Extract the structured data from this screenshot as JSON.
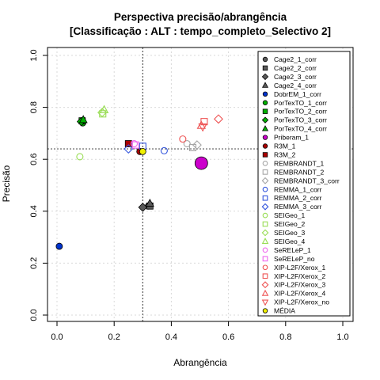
{
  "chart_data": {
    "type": "scatter",
    "title": "Perspectiva precisão/abrangência",
    "subtitle": "[Classificação : ALT : tempo_completo_Selectivo 2]",
    "xlabel": "Abrangência",
    "ylabel": "Precisão",
    "xlim": [
      0,
      1
    ],
    "ylim": [
      0,
      1
    ],
    "xticks": [
      "0.0",
      "0.2",
      "0.4",
      "0.6",
      "0.8",
      "1.0"
    ],
    "yticks": [
      "0.0",
      "0.2",
      "0.4",
      "0.6",
      "0.8",
      "1.0"
    ],
    "grid": true,
    "legend_position": "right",
    "reference_lines": {
      "x": 0.3,
      "y": 0.64
    },
    "series": [
      {
        "name": "Cage2_1_corr",
        "shape": "circle",
        "color": "#595959",
        "filled": true,
        "points": [
          [
            0.32,
            0.42
          ]
        ]
      },
      {
        "name": "Cage2_2_corr",
        "shape": "square",
        "color": "#595959",
        "filled": true,
        "points": [
          [
            0.325,
            0.42
          ]
        ]
      },
      {
        "name": "Cage2_3_corr",
        "shape": "diamond",
        "color": "#595959",
        "filled": true,
        "points": [
          [
            0.3,
            0.415
          ]
        ]
      },
      {
        "name": "Cage2_4_corr",
        "shape": "triangle",
        "color": "#595959",
        "filled": true,
        "points": [
          [
            0.325,
            0.43
          ]
        ]
      },
      {
        "name": "DobrEM_1_corr",
        "shape": "circle",
        "color": "#0033cc",
        "filled": true,
        "points": [
          [
            0.008,
            0.265
          ]
        ]
      },
      {
        "name": "PorTexTO_1_corr",
        "shape": "circle",
        "color": "#00b000",
        "filled": true,
        "points": [
          [
            0.09,
            0.74
          ]
        ]
      },
      {
        "name": "PorTexTO_2_corr",
        "shape": "square",
        "color": "#00b000",
        "filled": true,
        "points": [
          [
            0.088,
            0.748
          ]
        ]
      },
      {
        "name": "PorTexTO_3_corr",
        "shape": "diamond",
        "color": "#00b000",
        "filled": true,
        "points": [
          [
            0.085,
            0.745
          ]
        ]
      },
      {
        "name": "PorTexTO_4_corr",
        "shape": "triangle",
        "color": "#00b000",
        "filled": true,
        "points": [
          [
            0.092,
            0.752
          ]
        ]
      },
      {
        "name": "Priberam_1",
        "shape": "circle",
        "color": "#cc00cc",
        "filled": true,
        "points": [
          [
            0.505,
            0.585
          ]
        ]
      },
      {
        "name": "R3M_1",
        "shape": "circle",
        "color": "#aa0000",
        "filled": true,
        "points": [
          [
            0.29,
            0.63
          ]
        ]
      },
      {
        "name": "R3M_2",
        "shape": "square",
        "color": "#aa0000",
        "filled": true,
        "points": [
          [
            0.25,
            0.66
          ]
        ]
      },
      {
        "name": "REMBRANDT_1",
        "shape": "circle",
        "color": "#a6a6a6",
        "filled": false,
        "points": [
          [
            0.455,
            0.66
          ]
        ]
      },
      {
        "name": "REMBRANDT_2",
        "shape": "square",
        "color": "#a6a6a6",
        "filled": false,
        "points": [
          [
            0.475,
            0.645
          ]
        ]
      },
      {
        "name": "REMBRANDT_3_corr",
        "shape": "diamond",
        "color": "#a6a6a6",
        "filled": false,
        "points": [
          [
            0.49,
            0.655
          ]
        ]
      },
      {
        "name": "REMMA_1_corr",
        "shape": "circle",
        "color": "#3355dd",
        "filled": false,
        "points": [
          [
            0.375,
            0.633
          ]
        ]
      },
      {
        "name": "REMMA_2_corr",
        "shape": "square",
        "color": "#3355dd",
        "filled": false,
        "points": [
          [
            0.3,
            0.65
          ]
        ]
      },
      {
        "name": "REMMA_3_corr",
        "shape": "diamond",
        "color": "#3355dd",
        "filled": false,
        "points": [
          [
            0.25,
            0.64
          ]
        ]
      },
      {
        "name": "SEIGeo_1",
        "shape": "circle",
        "color": "#99dd55",
        "filled": false,
        "points": [
          [
            0.08,
            0.61
          ]
        ]
      },
      {
        "name": "SEIGeo_2",
        "shape": "square",
        "color": "#99dd55",
        "filled": false,
        "points": [
          [
            0.16,
            0.775
          ]
        ]
      },
      {
        "name": "SEIGeo_3",
        "shape": "diamond",
        "color": "#99dd55",
        "filled": false,
        "points": [
          [
            0.158,
            0.78
          ]
        ]
      },
      {
        "name": "SEIGeo_4",
        "shape": "triangle",
        "color": "#99dd55",
        "filled": false,
        "points": [
          [
            0.165,
            0.79
          ]
        ]
      },
      {
        "name": "SeRELeP_1",
        "shape": "circle",
        "color": "#ee66ee",
        "filled": false,
        "points": [
          [
            0.27,
            0.66
          ]
        ]
      },
      {
        "name": "SeRELeP_no",
        "shape": "square",
        "color": "#ee66ee",
        "filled": false,
        "points": [
          [
            0.275,
            0.655
          ]
        ]
      },
      {
        "name": "XIP-L2F/Xerox_1",
        "shape": "circle",
        "color": "#ee5555",
        "filled": false,
        "points": [
          [
            0.44,
            0.678
          ]
        ]
      },
      {
        "name": "XIP-L2F/Xerox_2",
        "shape": "square",
        "color": "#ee5555",
        "filled": false,
        "points": [
          [
            0.515,
            0.745
          ]
        ]
      },
      {
        "name": "XIP-L2F/Xerox_3",
        "shape": "diamond",
        "color": "#ee5555",
        "filled": false,
        "points": [
          [
            0.565,
            0.755
          ]
        ]
      },
      {
        "name": "XIP-L2F/Xerox_4",
        "shape": "triangle",
        "color": "#ee5555",
        "filled": false,
        "points": [
          [
            0.505,
            0.73
          ]
        ]
      },
      {
        "name": "XIP-L2F/Xerox_no",
        "shape": "triangle-down",
        "color": "#ee5555",
        "filled": false,
        "points": [
          [
            0.51,
            0.725
          ]
        ]
      },
      {
        "name": "MÉDIA",
        "shape": "circle",
        "color": "#f0f000",
        "filled": true,
        "points": [
          [
            0.3,
            0.63
          ]
        ]
      }
    ]
  }
}
